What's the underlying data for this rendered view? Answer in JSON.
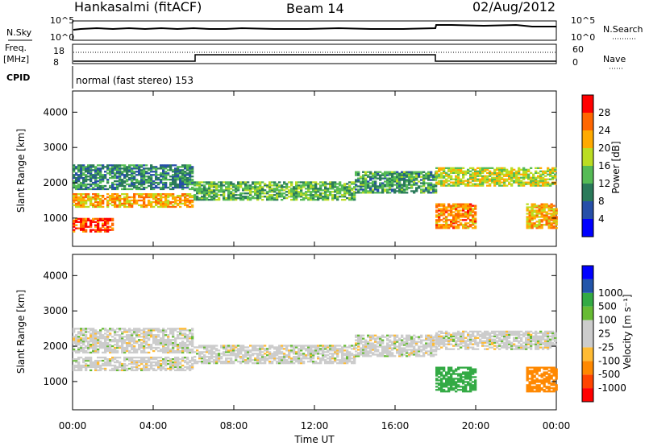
{
  "header": {
    "radar": "Hankasalmi (fitACF)",
    "beam": "Beam 14",
    "date": "02/Aug/2012"
  },
  "summary_panels": {
    "sky_label": "N.Sky",
    "sky_ticks": [
      "10^5",
      "10^0"
    ],
    "search_label": "N.Search",
    "freq_label_1": "Freq.",
    "freq_label_2": "[MHz]",
    "freq_ticks": [
      "18",
      "8"
    ],
    "nave_label": "Nave",
    "nave_ticks": [
      "60",
      "0"
    ],
    "cpid_label": "CPID",
    "cpid_text": "normal (fast stereo) 153"
  },
  "colors": {
    "power_scale": [
      "#0000ff",
      "#264fa8",
      "#2a7a5a",
      "#55bb55",
      "#bbdd22",
      "#ffaa00",
      "#ff6600",
      "#ff0000"
    ],
    "velocity_scale": [
      "#ff0000",
      "#ff4400",
      "#ff8800",
      "#ffbb33",
      "#cccccc",
      "#cccccc",
      "#66bb33",
      "#33aa44",
      "#2255aa",
      "#0000ff"
    ]
  },
  "chart_data": [
    {
      "type": "heatmap",
      "name": "power",
      "xlabel": "Time UT",
      "ylabel": "Slant Range [km]",
      "x_ticks": [
        "00:00",
        "04:00",
        "08:00",
        "12:00",
        "16:00",
        "20:00",
        "00:00"
      ],
      "y_ticks": [
        1000,
        2000,
        3000,
        4000
      ],
      "ylim": [
        200,
        4600
      ],
      "xlim_hours": [
        0,
        24
      ],
      "colorbar_label": "Power [dB]",
      "colorbar_ticks": [
        4,
        8,
        12,
        16,
        20,
        24,
        28
      ],
      "colorbar_range": [
        0,
        32
      ],
      "echo_bands": [
        {
          "t0": 0,
          "t1": 6,
          "r0": 1300,
          "r1": 1700,
          "level": 22
        },
        {
          "t0": 0,
          "t1": 2,
          "r0": 600,
          "r1": 1000,
          "level": 28
        },
        {
          "t0": 0,
          "t1": 6,
          "r0": 1800,
          "r1": 2500,
          "level": 10
        },
        {
          "t0": 6,
          "t1": 14,
          "r0": 1500,
          "r1": 2000,
          "level": 14
        },
        {
          "t0": 14,
          "t1": 18,
          "r0": 1700,
          "r1": 2300,
          "level": 12
        },
        {
          "t0": 18,
          "t1": 24,
          "r0": 1900,
          "r1": 2400,
          "level": 18
        },
        {
          "t0": 18,
          "t1": 20,
          "r0": 700,
          "r1": 1400,
          "level": 24
        },
        {
          "t0": 22.5,
          "t1": 24,
          "r0": 700,
          "r1": 1400,
          "level": 22
        }
      ]
    },
    {
      "type": "heatmap",
      "name": "velocity",
      "xlabel": "Time UT",
      "ylabel": "Slant Range [km]",
      "x_ticks": [
        "00:00",
        "04:00",
        "08:00",
        "12:00",
        "16:00",
        "20:00",
        "00:00"
      ],
      "y_ticks": [
        1000,
        2000,
        3000,
        4000
      ],
      "ylim": [
        200,
        4600
      ],
      "xlim_hours": [
        0,
        24
      ],
      "colorbar_label": "Velocity [m s⁻¹]",
      "colorbar_ticks": [
        -1000,
        -500,
        -100,
        -25,
        25,
        100,
        500,
        1000
      ],
      "echo_bands": [
        {
          "t0": 0,
          "t1": 6,
          "r0": 1300,
          "r1": 1700,
          "level": 0
        },
        {
          "t0": 0,
          "t1": 6,
          "r0": 1800,
          "r1": 2500,
          "level": 0
        },
        {
          "t0": 6,
          "t1": 14,
          "r0": 1500,
          "r1": 2000,
          "level": 0
        },
        {
          "t0": 14,
          "t1": 18,
          "r0": 1700,
          "r1": 2300,
          "level": 0
        },
        {
          "t0": 18,
          "t1": 24,
          "r0": 1900,
          "r1": 2400,
          "level": 0
        },
        {
          "t0": 18,
          "t1": 20,
          "r0": 700,
          "r1": 1400,
          "level": 150
        },
        {
          "t0": 22.5,
          "t1": 24,
          "r0": 700,
          "r1": 1400,
          "level": -300
        }
      ]
    }
  ]
}
